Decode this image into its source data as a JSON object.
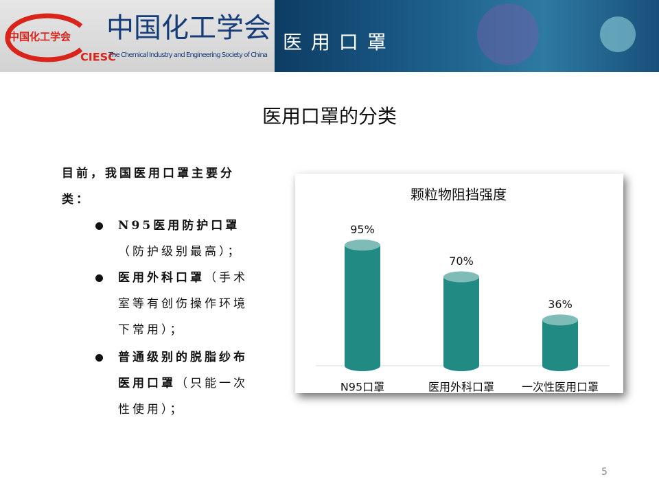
{
  "header": {
    "logo_badge": "中国化工学会",
    "logo_title": "中国化工学会",
    "logo_abbr": "CIESC",
    "logo_english": "The Chemical Industry and Engineering Society of China",
    "title": "医 用 口 罩"
  },
  "slide_title": "医用口罩的分类",
  "intro": "目前，我国医用口罩主要分类：",
  "bullets": [
    {
      "bold": "N95医用防护口罩",
      "text": "（防护级别最高）；"
    },
    {
      "bold": "医用外科口罩",
      "text": "（手术室等有创伤操作环境下常用）；"
    },
    {
      "bold": "普通级别的脱脂纱布医用口罩",
      "text": "（只能一次性使用）；"
    }
  ],
  "chart_data": {
    "type": "bar",
    "title": "颗粒物阻挡强度",
    "categories": [
      "N95口罩",
      "医用外科口罩",
      "一次性医用口罩"
    ],
    "values": [
      95,
      70,
      36
    ],
    "value_labels": [
      "95%",
      "70%",
      "36%"
    ],
    "color": "#218a82"
  },
  "page_number": "5"
}
